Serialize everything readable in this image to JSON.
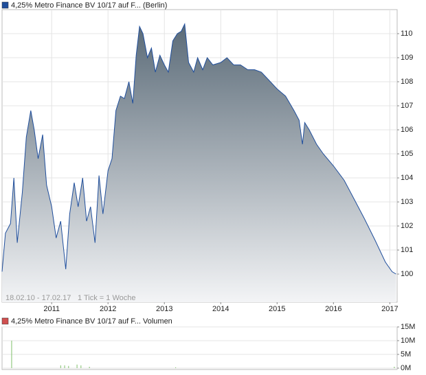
{
  "chart_data": [
    {
      "type": "area",
      "title": "4,25% Metro Finance BV 10/17 auf F... (Berlin)",
      "footnote": "18.02.10 - 17.02.17",
      "tick_note": "1 Tick = 1 Woche",
      "color": "#1f4e9c",
      "fill_top": "#5b6b78",
      "fill_bottom": "#f3f4f6",
      "grid": true,
      "x": [
        2010.12,
        2010.18,
        2010.27,
        2010.33,
        2010.39,
        2010.48,
        2010.55,
        2010.63,
        2010.69,
        2010.76,
        2010.84,
        2010.91,
        2011.0,
        2011.08,
        2011.16,
        2011.25,
        2011.32,
        2011.4,
        2011.47,
        2011.55,
        2011.62,
        2011.69,
        2011.77,
        2011.84,
        2011.91,
        2012.0,
        2012.07,
        2012.14,
        2012.22,
        2012.29,
        2012.37,
        2012.44,
        2012.5,
        2012.56,
        2012.62,
        2012.7,
        2012.77,
        2012.84,
        2012.92,
        2013.0,
        2013.07,
        2013.15,
        2013.23,
        2013.3,
        2013.36,
        2013.43,
        2013.52,
        2013.59,
        2013.68,
        2013.76,
        2013.86,
        2014.0,
        2014.11,
        2014.23,
        2014.35,
        2014.48,
        2014.6,
        2014.72,
        2014.84,
        2015.0,
        2015.15,
        2015.3,
        2015.39,
        2015.45,
        2015.49,
        2015.57,
        2015.7,
        2015.82,
        2016.0,
        2016.19,
        2016.37,
        2016.55,
        2016.74,
        2016.92,
        2017.04,
        2017.11
      ],
      "values": [
        100.1,
        101.7,
        102.1,
        104.0,
        101.3,
        103.4,
        105.7,
        106.8,
        106.0,
        104.8,
        105.8,
        103.7,
        102.8,
        101.5,
        102.2,
        100.2,
        102.5,
        103.8,
        102.8,
        104.0,
        102.2,
        102.8,
        101.3,
        104.1,
        102.5,
        104.3,
        104.8,
        106.8,
        107.4,
        107.3,
        108.0,
        107.1,
        109.1,
        110.3,
        110.0,
        109.0,
        109.4,
        108.4,
        109.1,
        108.7,
        108.4,
        109.7,
        110.0,
        110.1,
        110.4,
        108.8,
        108.4,
        109.0,
        108.5,
        109.0,
        108.7,
        108.8,
        109.0,
        108.7,
        108.7,
        108.5,
        108.5,
        108.4,
        108.1,
        107.7,
        107.4,
        106.8,
        106.4,
        105.4,
        106.3,
        106.0,
        105.4,
        105.0,
        104.5,
        103.9,
        103.1,
        102.3,
        101.4,
        100.5,
        100.1,
        100.0
      ],
      "xlim": [
        2010.12,
        2017.13
      ],
      "xticks": [
        2011,
        2012,
        2013,
        2014,
        2015,
        2016,
        2017
      ],
      "ylim": [
        98.83,
        111
      ],
      "yticks": [
        100,
        101,
        102,
        103,
        104,
        105,
        106,
        107,
        108,
        109,
        110
      ]
    },
    {
      "type": "bar",
      "title": "4,25% Metro Finance BV 10/17 auf F... Volumen",
      "color": "#7fbf6a",
      "grid": true,
      "x": [
        2010.29,
        2011.16,
        2011.23,
        2011.3,
        2011.45,
        2011.52,
        2011.67,
        2013.2,
        2017.08
      ],
      "values": [
        10000000,
        1000000,
        1000000,
        800000,
        1300000,
        1000000,
        500000,
        300000,
        500000
      ],
      "xlim": [
        2010.12,
        2017.13
      ],
      "ylim": [
        -500000,
        15000000
      ],
      "yticks": [
        {
          "value": 0,
          "label": "0M"
        },
        {
          "value": 5000000,
          "label": "5M"
        },
        {
          "value": 10000000,
          "label": "10M"
        },
        {
          "value": 15000000,
          "label": "15M"
        }
      ]
    }
  ]
}
